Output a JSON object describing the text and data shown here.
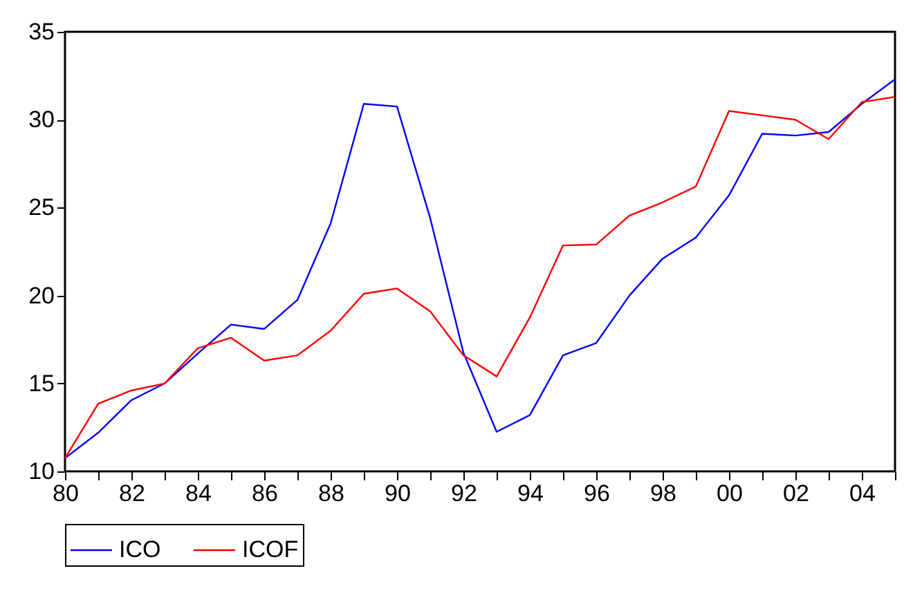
{
  "chart_data": {
    "type": "line",
    "x": [
      1980,
      1981,
      1982,
      1983,
      1984,
      1985,
      1986,
      1987,
      1988,
      1989,
      1990,
      1991,
      1992,
      1993,
      1994,
      1995,
      1996,
      1997,
      1998,
      1999,
      2000,
      2001,
      2002,
      2003,
      2004,
      2005
    ],
    "series": [
      {
        "name": "ICO",
        "color": "#0000ff",
        "values": [
          10.75,
          12.2,
          14.05,
          15.0,
          16.7,
          18.35,
          18.1,
          19.75,
          24.1,
          30.9,
          30.75,
          24.4,
          16.75,
          12.25,
          13.2,
          16.6,
          17.3,
          20.0,
          22.1,
          23.3,
          25.7,
          29.2,
          29.1,
          29.3,
          30.9,
          32.3
        ]
      },
      {
        "name": "ICOF",
        "color": "#ff0000",
        "values": [
          10.75,
          13.85,
          14.6,
          15.0,
          17.0,
          17.6,
          16.3,
          16.6,
          18.0,
          20.1,
          20.4,
          19.1,
          16.6,
          15.4,
          18.75,
          22.85,
          22.9,
          24.55,
          25.3,
          26.2,
          30.5,
          30.25,
          30.0,
          28.9,
          31.0,
          31.3
        ]
      }
    ],
    "xlim": [
      1980,
      2005
    ],
    "xticks": [
      {
        "value": 1980,
        "label": "80"
      },
      {
        "value": 1981,
        "label": null
      },
      {
        "value": 1982,
        "label": "82"
      },
      {
        "value": 1983,
        "label": null
      },
      {
        "value": 1984,
        "label": "84"
      },
      {
        "value": 1985,
        "label": null
      },
      {
        "value": 1986,
        "label": "86"
      },
      {
        "value": 1987,
        "label": null
      },
      {
        "value": 1988,
        "label": "88"
      },
      {
        "value": 1989,
        "label": null
      },
      {
        "value": 1990,
        "label": "90"
      },
      {
        "value": 1991,
        "label": null
      },
      {
        "value": 1992,
        "label": "92"
      },
      {
        "value": 1993,
        "label": null
      },
      {
        "value": 1994,
        "label": "94"
      },
      {
        "value": 1995,
        "label": null
      },
      {
        "value": 1996,
        "label": "96"
      },
      {
        "value": 1997,
        "label": null
      },
      {
        "value": 1998,
        "label": "98"
      },
      {
        "value": 1999,
        "label": null
      },
      {
        "value": 2000,
        "label": "00"
      },
      {
        "value": 2001,
        "label": null
      },
      {
        "value": 2002,
        "label": "02"
      },
      {
        "value": 2003,
        "label": null
      },
      {
        "value": 2004,
        "label": "04"
      },
      {
        "value": 2005,
        "label": null
      }
    ],
    "ylim": [
      10,
      35
    ],
    "yticks": [
      10,
      15,
      20,
      25,
      30,
      35
    ],
    "grid": false,
    "legend": "bottom",
    "marker": "none",
    "line_style": "solid"
  }
}
